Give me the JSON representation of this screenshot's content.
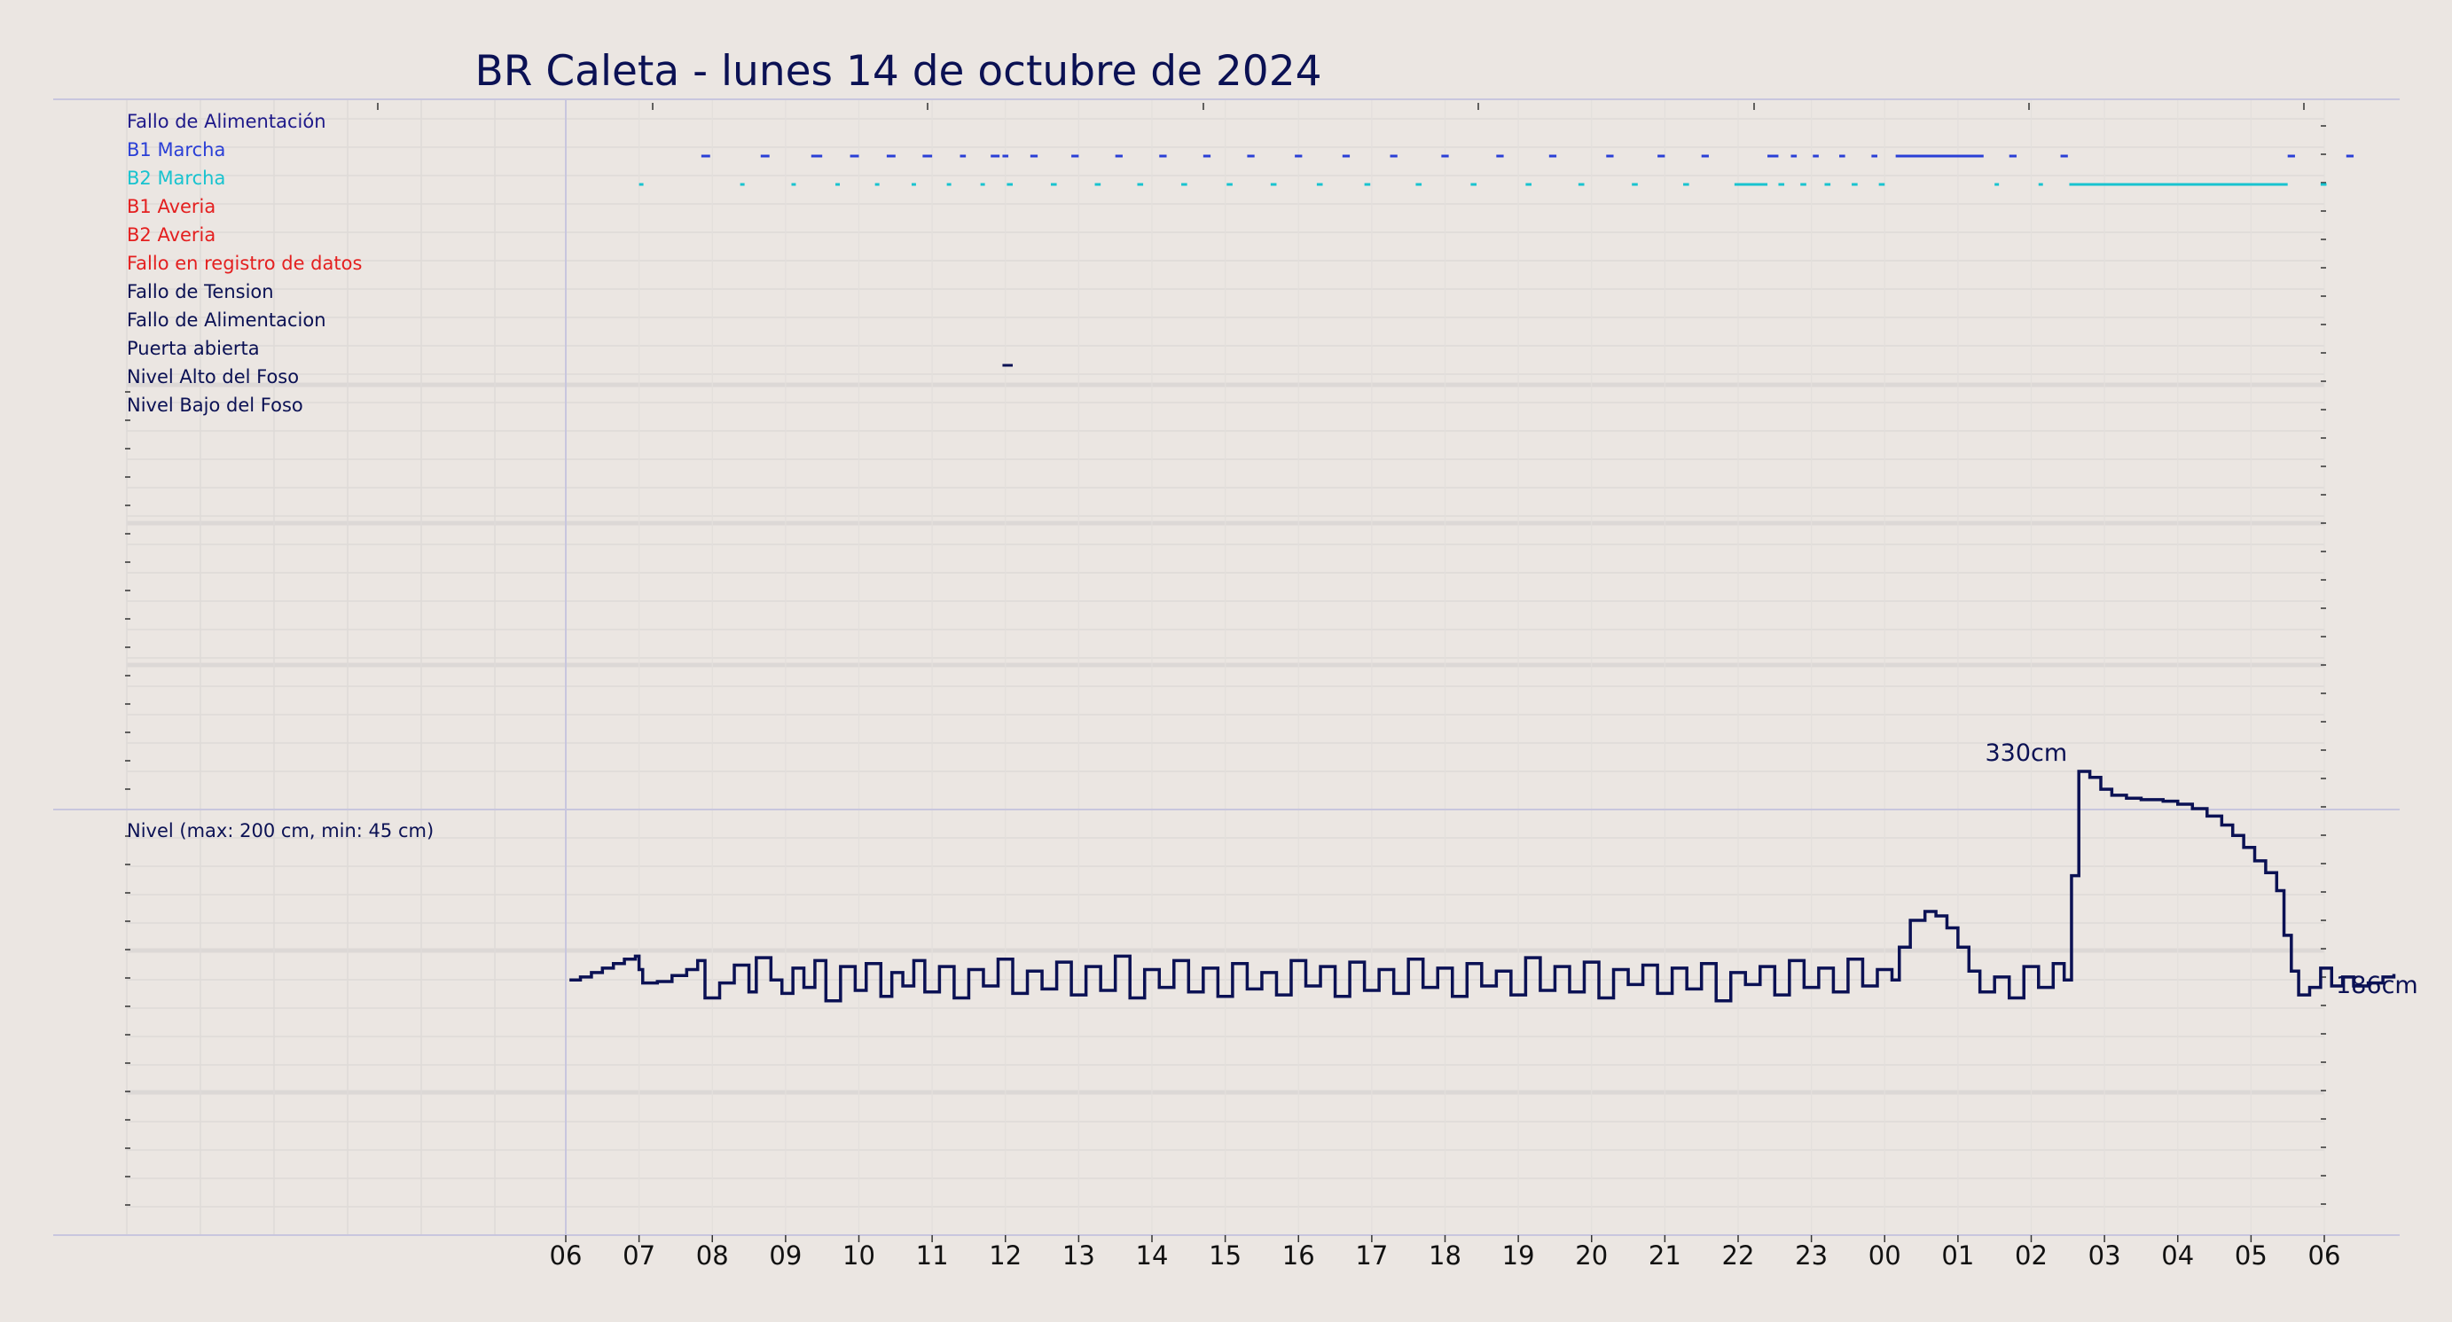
{
  "title": "BR Caleta   -   lunes 14 de octubre de 2024",
  "chart_data": [
    {
      "type": "event-timeline",
      "x_ticks": [
        "06",
        "07",
        "08",
        "09",
        "10",
        "11",
        "12",
        "13",
        "14",
        "15",
        "16",
        "17",
        "18",
        "19",
        "20",
        "21",
        "22",
        "23",
        "00",
        "01",
        "02",
        "03",
        "04",
        "05",
        "06"
      ],
      "rows": [
        {
          "label": "Fallo de Alimentación",
          "color": "#1f1a8a",
          "events": []
        },
        {
          "label": "B1 Marcha",
          "color": "#2a3fd6",
          "events": [
            [
              1.85,
              1.97
            ],
            [
              2.66,
              2.78
            ],
            [
              3.35,
              3.5
            ],
            [
              3.88,
              4.0
            ],
            [
              4.38,
              4.5
            ],
            [
              4.87,
              5.0
            ],
            [
              5.38,
              5.46
            ],
            [
              5.8,
              5.92
            ],
            [
              5.96,
              6.04
            ],
            [
              6.34,
              6.44
            ],
            [
              6.9,
              7.0
            ],
            [
              7.5,
              7.6
            ],
            [
              8.1,
              8.2
            ],
            [
              8.7,
              8.8
            ],
            [
              9.3,
              9.4
            ],
            [
              9.95,
              10.05
            ],
            [
              10.6,
              10.7
            ],
            [
              11.25,
              11.35
            ],
            [
              11.95,
              12.05
            ],
            [
              12.7,
              12.8
            ],
            [
              13.42,
              13.52
            ],
            [
              14.2,
              14.3
            ],
            [
              14.9,
              15.0
            ],
            [
              15.5,
              15.6
            ],
            [
              16.4,
              16.55
            ],
            [
              16.72,
              16.8
            ],
            [
              17.02,
              17.1
            ],
            [
              17.38,
              17.46
            ],
            [
              17.82,
              17.9
            ],
            [
              18.15,
              19.35
            ],
            [
              19.7,
              19.8
            ],
            [
              20.4,
              20.5
            ],
            [
              23.5,
              23.6
            ],
            [
              24.3,
              24.4
            ]
          ]
        },
        {
          "label": "B2 Marcha",
          "color": "#18c3cf",
          "events": [
            [
              1.0,
              1.06
            ],
            [
              2.38,
              2.44
            ],
            [
              3.08,
              3.14
            ],
            [
              3.68,
              3.74
            ],
            [
              4.22,
              4.28
            ],
            [
              4.72,
              4.78
            ],
            [
              5.2,
              5.26
            ],
            [
              5.66,
              5.72
            ],
            [
              6.02,
              6.1
            ],
            [
              6.62,
              6.7
            ],
            [
              7.22,
              7.3
            ],
            [
              7.8,
              7.88
            ],
            [
              8.4,
              8.48
            ],
            [
              9.02,
              9.1
            ],
            [
              9.62,
              9.7
            ],
            [
              10.25,
              10.33
            ],
            [
              10.9,
              10.98
            ],
            [
              11.6,
              11.68
            ],
            [
              12.35,
              12.43
            ],
            [
              13.1,
              13.18
            ],
            [
              13.82,
              13.9
            ],
            [
              14.55,
              14.63
            ],
            [
              15.25,
              15.33
            ],
            [
              15.95,
              16.4
            ],
            [
              16.55,
              16.63
            ],
            [
              16.85,
              16.93
            ],
            [
              17.18,
              17.26
            ],
            [
              17.55,
              17.63
            ],
            [
              17.92,
              18.0
            ],
            [
              19.5,
              19.56
            ],
            [
              20.1,
              20.16
            ],
            [
              20.52,
              23.5
            ],
            [
              23.95,
              24.03
            ]
          ]
        },
        {
          "label": "B1 Averia",
          "color": "#e41f1f",
          "events": []
        },
        {
          "label": "B2 Averia",
          "color": "#e41f1f",
          "events": []
        },
        {
          "label": "Fallo en registro de datos",
          "color": "#e41f1f",
          "events": []
        },
        {
          "label": "Fallo de Tension",
          "color": "#0b1154",
          "events": []
        },
        {
          "label": "Fallo de Alimentacion",
          "color": "#0b1154",
          "events": []
        },
        {
          "label": "Puerta abierta",
          "color": "#0b1154",
          "events": [
            [
              5.96,
              6.1
            ]
          ]
        },
        {
          "label": "Nivel Alto del Foso",
          "color": "#0b1154",
          "events": []
        },
        {
          "label": "Nivel Bajo del Foso",
          "color": "#0b1154",
          "events": []
        }
      ]
    },
    {
      "type": "line",
      "label": "Nivel (max: 200 cm, min: 45 cm)",
      "x_ticks": [
        "06",
        "07",
        "08",
        "09",
        "10",
        "11",
        "12",
        "13",
        "14",
        "15",
        "16",
        "17",
        "18",
        "19",
        "20",
        "21",
        "22",
        "23",
        "00",
        "01",
        "02",
        "03",
        "04",
        "05",
        "06"
      ],
      "ylim": [
        0,
        400
      ],
      "color": "#0b1154",
      "annotations": [
        {
          "text": "330cm",
          "x": 20.0,
          "y": 330
        },
        {
          "text": "186cm",
          "x": 24.4,
          "y": 186
        }
      ],
      "points": [
        [
          0.05,
          190
        ],
        [
          0.2,
          192
        ],
        [
          0.35,
          195
        ],
        [
          0.5,
          198
        ],
        [
          0.65,
          201
        ],
        [
          0.8,
          204
        ],
        [
          0.95,
          206
        ],
        [
          1.0,
          197
        ],
        [
          1.05,
          188
        ],
        [
          1.25,
          189
        ],
        [
          1.45,
          193
        ],
        [
          1.65,
          197
        ],
        [
          1.8,
          203
        ],
        [
          1.9,
          178
        ],
        [
          2.1,
          188
        ],
        [
          2.3,
          200
        ],
        [
          2.5,
          182
        ],
        [
          2.6,
          205
        ],
        [
          2.8,
          190
        ],
        [
          2.95,
          181
        ],
        [
          3.1,
          198
        ],
        [
          3.25,
          185
        ],
        [
          3.4,
          203
        ],
        [
          3.55,
          176
        ],
        [
          3.75,
          199
        ],
        [
          3.95,
          183
        ],
        [
          4.1,
          201
        ],
        [
          4.3,
          179
        ],
        [
          4.45,
          195
        ],
        [
          4.6,
          186
        ],
        [
          4.75,
          203
        ],
        [
          4.9,
          182
        ],
        [
          5.1,
          199
        ],
        [
          5.3,
          178
        ],
        [
          5.5,
          197
        ],
        [
          5.7,
          186
        ],
        [
          5.9,
          204
        ],
        [
          6.1,
          181
        ],
        [
          6.3,
          196
        ],
        [
          6.5,
          184
        ],
        [
          6.7,
          202
        ],
        [
          6.9,
          180
        ],
        [
          7.1,
          199
        ],
        [
          7.3,
          183
        ],
        [
          7.5,
          206
        ],
        [
          7.7,
          178
        ],
        [
          7.9,
          197
        ],
        [
          8.1,
          185
        ],
        [
          8.3,
          203
        ],
        [
          8.5,
          182
        ],
        [
          8.7,
          198
        ],
        [
          8.9,
          179
        ],
        [
          9.1,
          201
        ],
        [
          9.3,
          184
        ],
        [
          9.5,
          195
        ],
        [
          9.7,
          180
        ],
        [
          9.9,
          203
        ],
        [
          10.1,
          186
        ],
        [
          10.3,
          199
        ],
        [
          10.5,
          179
        ],
        [
          10.7,
          202
        ],
        [
          10.9,
          183
        ],
        [
          11.1,
          197
        ],
        [
          11.3,
          181
        ],
        [
          11.5,
          204
        ],
        [
          11.7,
          185
        ],
        [
          11.9,
          198
        ],
        [
          12.1,
          179
        ],
        [
          12.3,
          201
        ],
        [
          12.5,
          186
        ],
        [
          12.7,
          196
        ],
        [
          12.9,
          180
        ],
        [
          13.1,
          205
        ],
        [
          13.3,
          183
        ],
        [
          13.5,
          199
        ],
        [
          13.7,
          182
        ],
        [
          13.9,
          202
        ],
        [
          14.1,
          178
        ],
        [
          14.3,
          197
        ],
        [
          14.5,
          187
        ],
        [
          14.7,
          200
        ],
        [
          14.9,
          181
        ],
        [
          15.1,
          198
        ],
        [
          15.3,
          184
        ],
        [
          15.5,
          201
        ],
        [
          15.7,
          176
        ],
        [
          15.9,
          195
        ],
        [
          16.1,
          187
        ],
        [
          16.3,
          199
        ],
        [
          16.5,
          180
        ],
        [
          16.7,
          203
        ],
        [
          16.9,
          185
        ],
        [
          17.1,
          198
        ],
        [
          17.3,
          182
        ],
        [
          17.5,
          204
        ],
        [
          17.7,
          186
        ],
        [
          17.9,
          197
        ],
        [
          18.1,
          190
        ],
        [
          18.2,
          212
        ],
        [
          18.35,
          230
        ],
        [
          18.55,
          236
        ],
        [
          18.7,
          233
        ],
        [
          18.85,
          225
        ],
        [
          19.0,
          212
        ],
        [
          19.15,
          196
        ],
        [
          19.3,
          182
        ],
        [
          19.5,
          192
        ],
        [
          19.7,
          178
        ],
        [
          19.9,
          199
        ],
        [
          20.1,
          185
        ],
        [
          20.3,
          201
        ],
        [
          20.45,
          190
        ],
        [
          20.55,
          260
        ],
        [
          20.65,
          330
        ],
        [
          20.8,
          326
        ],
        [
          20.95,
          318
        ],
        [
          21.1,
          314
        ],
        [
          21.3,
          312
        ],
        [
          21.5,
          311
        ],
        [
          21.8,
          310
        ],
        [
          22.0,
          308
        ],
        [
          22.2,
          305
        ],
        [
          22.4,
          300
        ],
        [
          22.6,
          294
        ],
        [
          22.75,
          287
        ],
        [
          22.9,
          279
        ],
        [
          23.05,
          270
        ],
        [
          23.2,
          262
        ],
        [
          23.35,
          250
        ],
        [
          23.45,
          220
        ],
        [
          23.55,
          196
        ],
        [
          23.65,
          180
        ],
        [
          23.8,
          185
        ],
        [
          23.95,
          198
        ],
        [
          24.1,
          186
        ],
        [
          24.25,
          192
        ],
        [
          24.4,
          186
        ],
        [
          24.6,
          188
        ],
        [
          24.8,
          192
        ],
        [
          24.95,
          194
        ]
      ]
    }
  ]
}
